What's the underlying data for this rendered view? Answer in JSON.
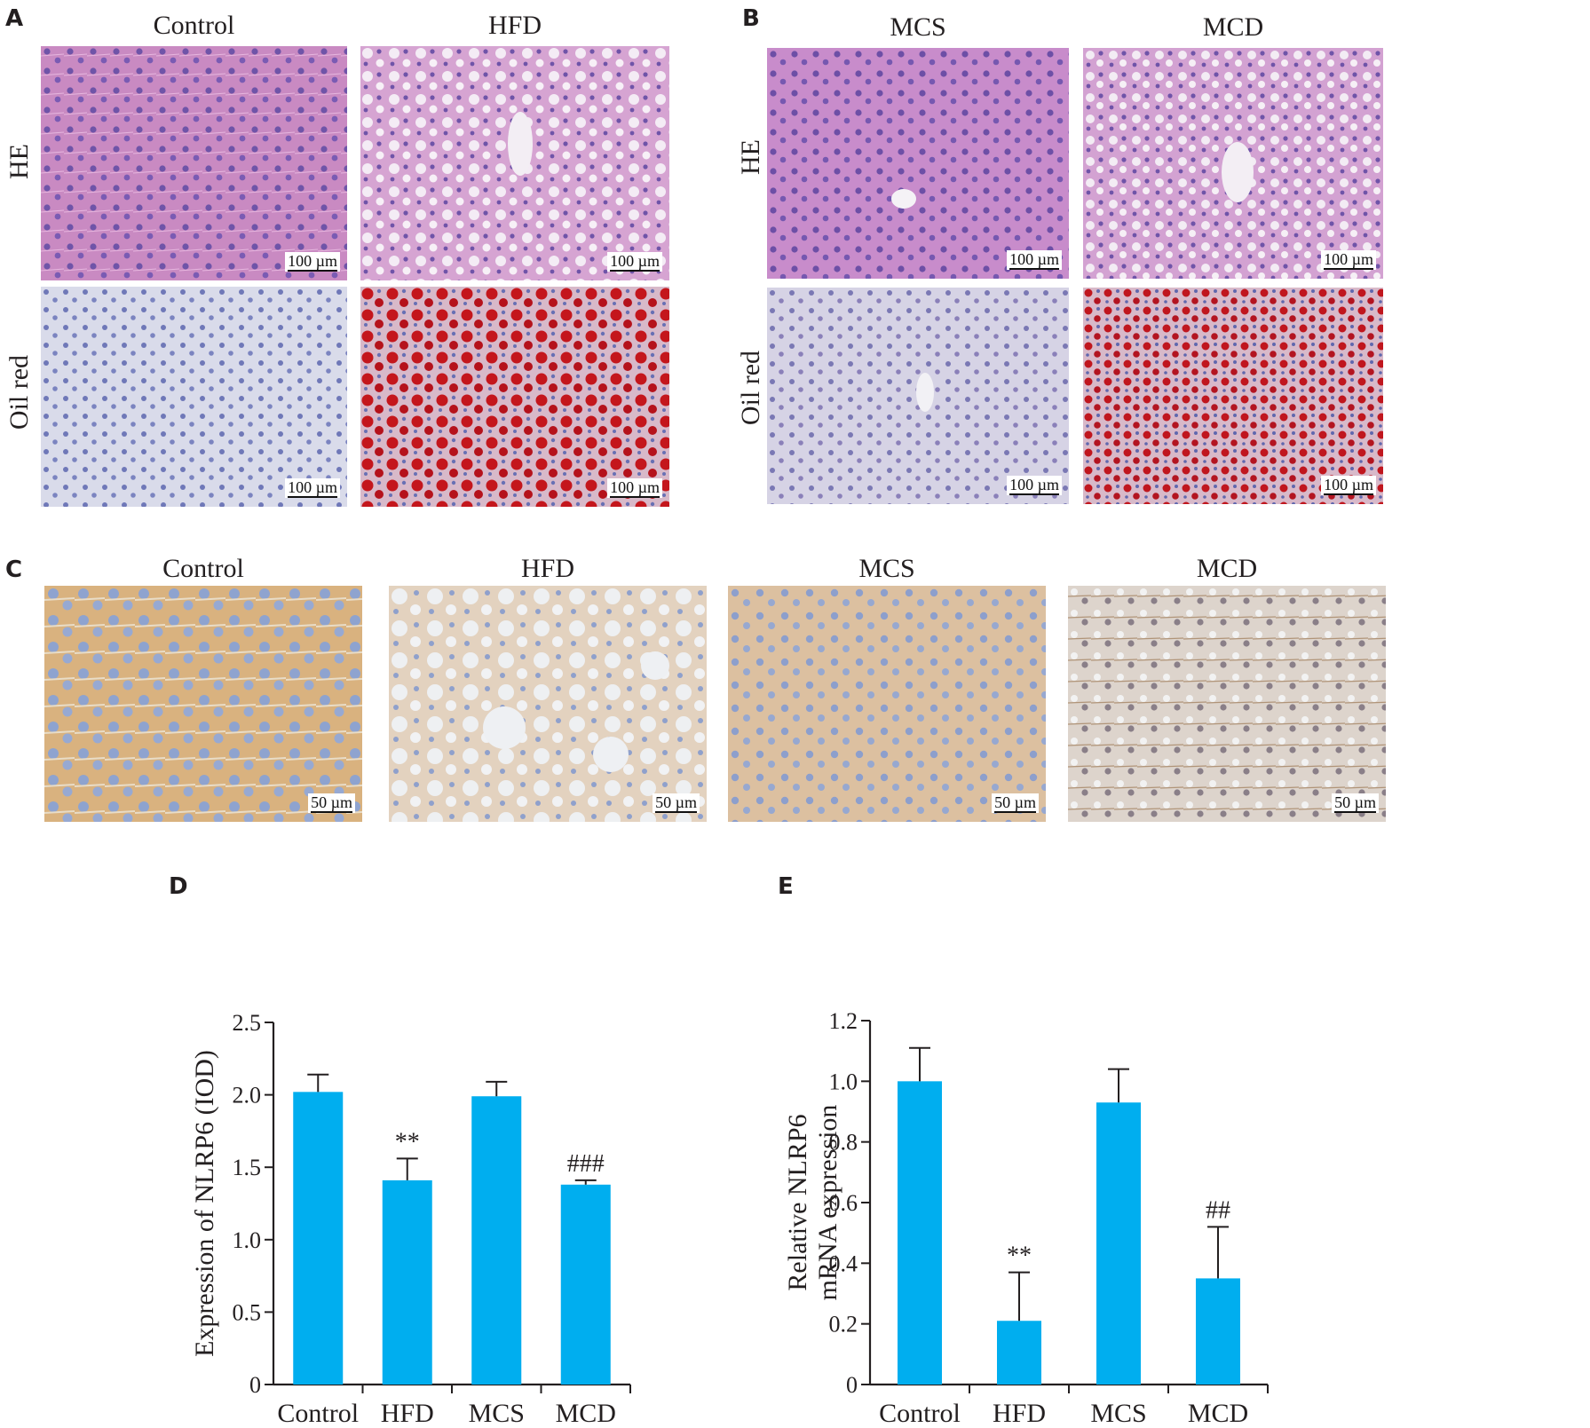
{
  "panels": {
    "A": {
      "label": "A",
      "columns": [
        "Control",
        "HFD"
      ],
      "rows": [
        "HE",
        "Oil red"
      ],
      "scale_bar": "100 µm"
    },
    "B": {
      "label": "B",
      "columns": [
        "MCS",
        "MCD"
      ],
      "rows": [
        "HE",
        "Oil red"
      ],
      "scale_bar": "100 µm"
    },
    "C": {
      "label": "C",
      "columns": [
        "Control",
        "HFD",
        "MCS",
        "MCD"
      ],
      "scale_bar": "50 µm"
    },
    "D": {
      "label": "D"
    },
    "E": {
      "label": "E"
    }
  },
  "colors": {
    "bar": "#00aeef",
    "axis": "#231f20"
  },
  "chart_data": [
    {
      "id": "D",
      "type": "bar",
      "categories": [
        "Control",
        "HFD",
        "MCS",
        "MCD"
      ],
      "values": [
        2.02,
        1.41,
        1.99,
        1.38
      ],
      "errors": [
        0.12,
        0.15,
        0.1,
        0.03
      ],
      "annotations": [
        "",
        "**",
        "",
        "###"
      ],
      "ylabel": "Expression of NLRP6 (IOD)",
      "ylim": [
        0,
        2.5
      ],
      "yticks": [
        0,
        0.5,
        1.0,
        1.5,
        2.0,
        2.5
      ],
      "ytick_labels": [
        "0",
        "0.5",
        "1.0",
        "1.5",
        "2.0",
        "2.5"
      ]
    },
    {
      "id": "E",
      "type": "bar",
      "categories": [
        "Control",
        "HFD",
        "MCS",
        "MCD"
      ],
      "values": [
        1.0,
        0.21,
        0.93,
        0.35
      ],
      "errors": [
        0.11,
        0.16,
        0.11,
        0.17
      ],
      "annotations": [
        "",
        "**",
        "",
        "##"
      ],
      "ylabel_lines": [
        "Relative NLRP6",
        "mRNA expression"
      ],
      "ylim": [
        0,
        1.2
      ],
      "yticks": [
        0,
        0.2,
        0.4,
        0.6,
        0.8,
        1.0,
        1.2
      ],
      "ytick_labels": [
        "0",
        "0.2",
        "0.4",
        "0.6",
        "0.8",
        "1.0",
        "1.2"
      ]
    }
  ]
}
